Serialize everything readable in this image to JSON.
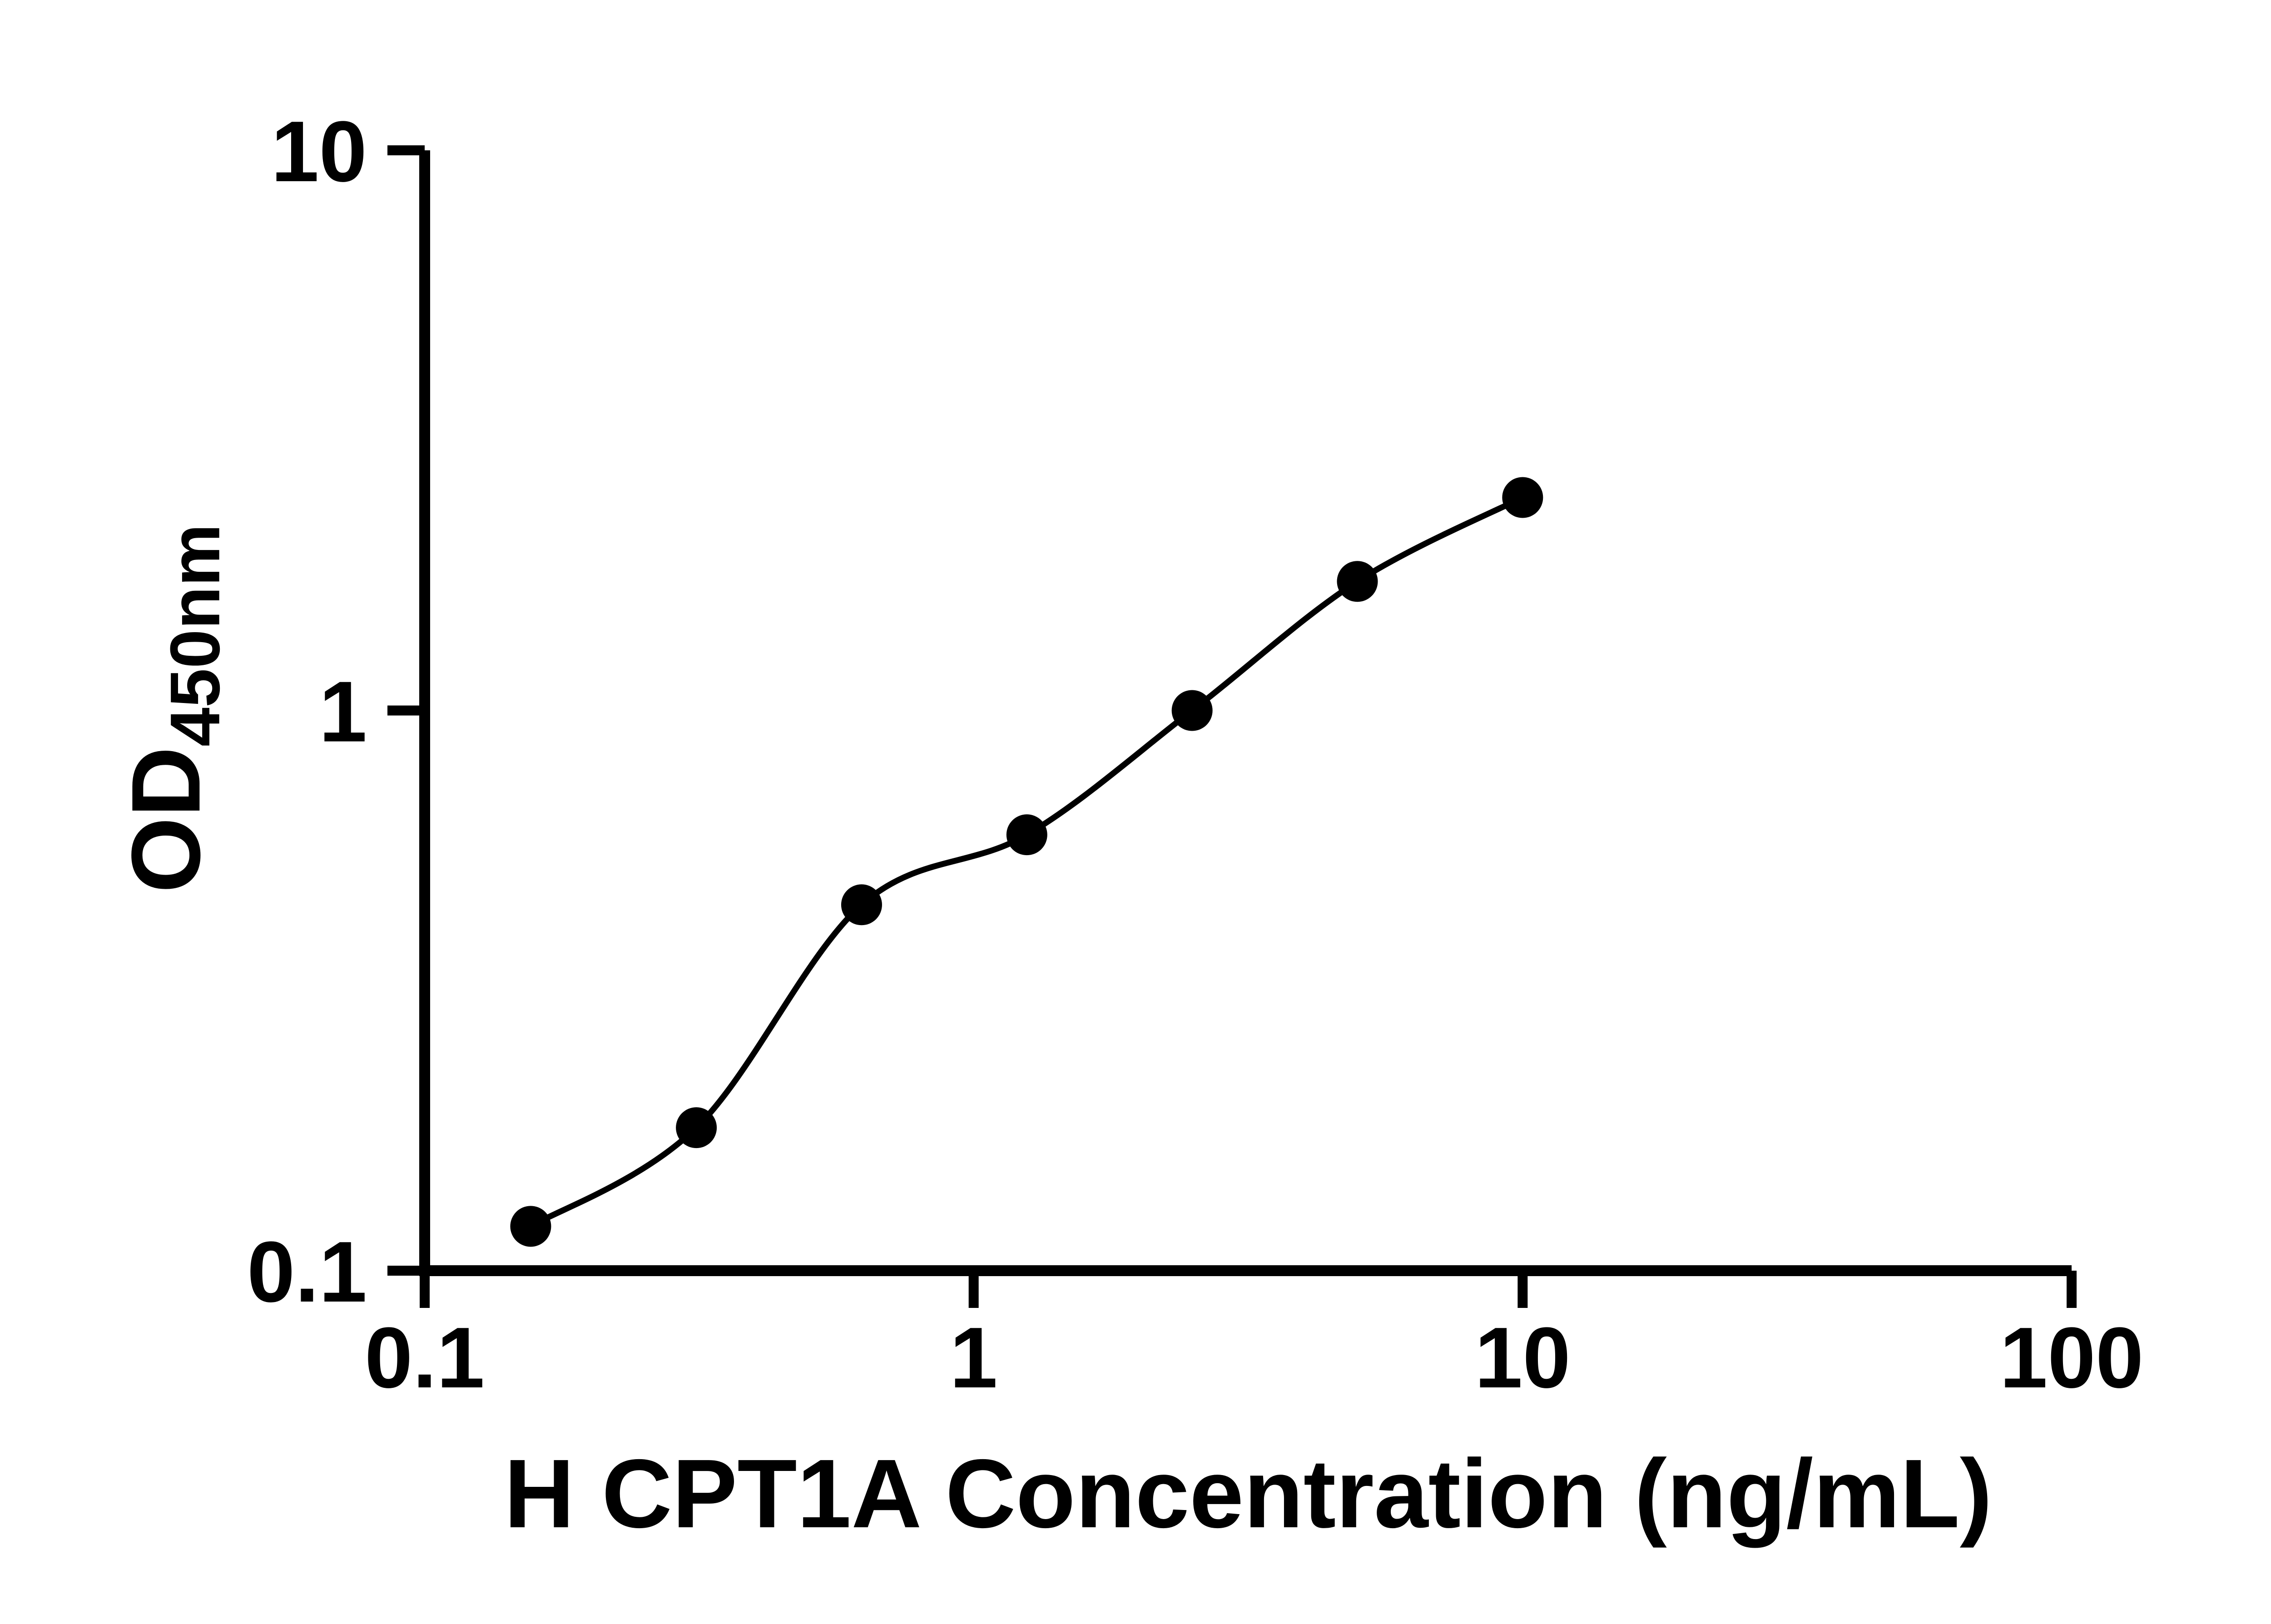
{
  "figure": {
    "background_color": "#ffffff",
    "axis_color": "#000000",
    "marker_color": "#000000",
    "curve_color": "#000000"
  },
  "chart_data": {
    "type": "scatter",
    "title": "",
    "xlabel": "H CPT1A Concentration (ng/mL)",
    "ylabel_main": "OD",
    "ylabel_sub": "450nm",
    "xscale": "log",
    "yscale": "log",
    "xlim": [
      0.1,
      100
    ],
    "ylim": [
      0.1,
      10
    ],
    "xticks": [
      0.1,
      1,
      10,
      100
    ],
    "xtick_labels": [
      "0.1",
      "1",
      "10",
      "100"
    ],
    "yticks": [
      0.1,
      1,
      10
    ],
    "ytick_labels": [
      "0.1",
      "1",
      "10"
    ],
    "grid": false,
    "legend": "none",
    "has_fit_line": true,
    "series": [
      {
        "marker": "filled-circle",
        "x": [
          0.156,
          0.3125,
          0.625,
          1.25,
          2.5,
          5,
          10
        ],
        "y": [
          0.12,
          0.18,
          0.45,
          0.6,
          1.0,
          1.7,
          2.4
        ]
      }
    ]
  }
}
